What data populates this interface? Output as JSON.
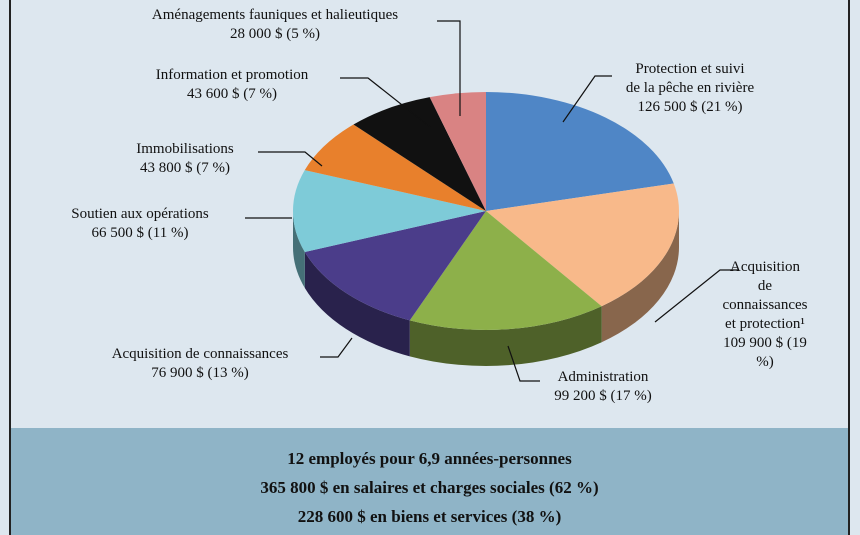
{
  "chart_data": {
    "type": "pie",
    "categories": [
      "Protection et suivi\nde la pêche en rivière",
      "Acquisition\nde connaissances\net protection¹",
      "Administration",
      "Acquisition de connaissances",
      "Soutien aux opérations",
      "Immobilisations",
      "Information et promotion",
      "Aménagements fauniques et halieutiques"
    ],
    "values": [
      126500,
      109900,
      99200,
      76900,
      66500,
      43800,
      43600,
      28000
    ],
    "value_labels": [
      "126 500 $ (21 %)",
      "109 900 $ (19 %)",
      "99 200 $ (17 %)",
      "76 900 $ (13 %)",
      "66 500 $ (11 %)",
      "43 800 $ (7 %)",
      "43 600 $ (7 %)",
      "28 000 $ (5 %)"
    ],
    "colors": [
      "#4f86c6",
      "#f8b98a",
      "#8db04a",
      "#4b3d8a",
      "#7ecbd8",
      "#e8802c",
      "#111111",
      "#d98383"
    ]
  },
  "summary": [
    "12 employés pour 6,9 années-personnes",
    "365 800 $ en salaires et charges sociales (62 %)",
    "228 600 $ en biens et services (38 %)"
  ]
}
